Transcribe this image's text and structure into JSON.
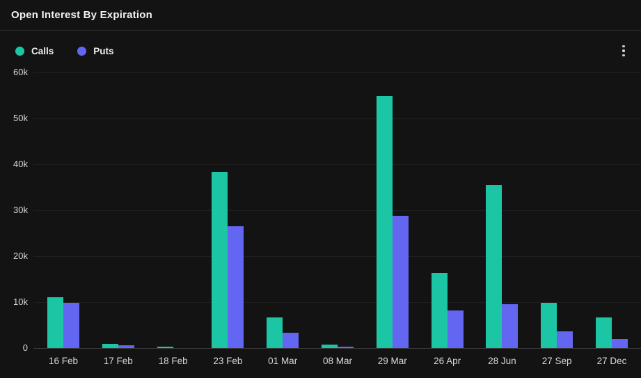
{
  "header": {
    "title": "Open Interest By Expiration"
  },
  "toolbar": {
    "menu_tooltip": "more-options"
  },
  "legend": {
    "calls_label": "Calls",
    "puts_label": "Puts"
  },
  "colors": {
    "background": "#131313",
    "calls": "#1cc6a5",
    "puts": "#6366f1",
    "grid": "#1f1f1f",
    "baseline": "#3a3a3a",
    "axis_text": "#d6d6d6"
  },
  "chart_data": {
    "type": "bar",
    "title": "Open Interest By Expiration",
    "categories": [
      "16 Feb",
      "17 Feb",
      "18 Feb",
      "23 Feb",
      "01 Mar",
      "08 Mar",
      "29 Mar",
      "26 Apr",
      "28 Jun",
      "27 Sep",
      "27 Dec"
    ],
    "series": [
      {
        "name": "Calls",
        "color": "#1cc6a5",
        "values": [
          11000,
          900,
          300,
          38400,
          6600,
          700,
          54800,
          16400,
          35400,
          9900,
          6700
        ]
      },
      {
        "name": "Puts",
        "color": "#6366f1",
        "values": [
          9900,
          600,
          0,
          26500,
          3300,
          300,
          28800,
          8200,
          9600,
          3600,
          1900
        ]
      }
    ],
    "xlabel": "",
    "ylabel": "",
    "ylim": [
      0,
      60000
    ],
    "yticks": [
      {
        "value": 0,
        "label": "0"
      },
      {
        "value": 10000,
        "label": "10k"
      },
      {
        "value": 20000,
        "label": "20k"
      },
      {
        "value": 30000,
        "label": "30k"
      },
      {
        "value": 40000,
        "label": "40k"
      },
      {
        "value": 50000,
        "label": "50k"
      },
      {
        "value": 60000,
        "label": "60k"
      }
    ],
    "grid": true,
    "legend_position": "top-left"
  }
}
